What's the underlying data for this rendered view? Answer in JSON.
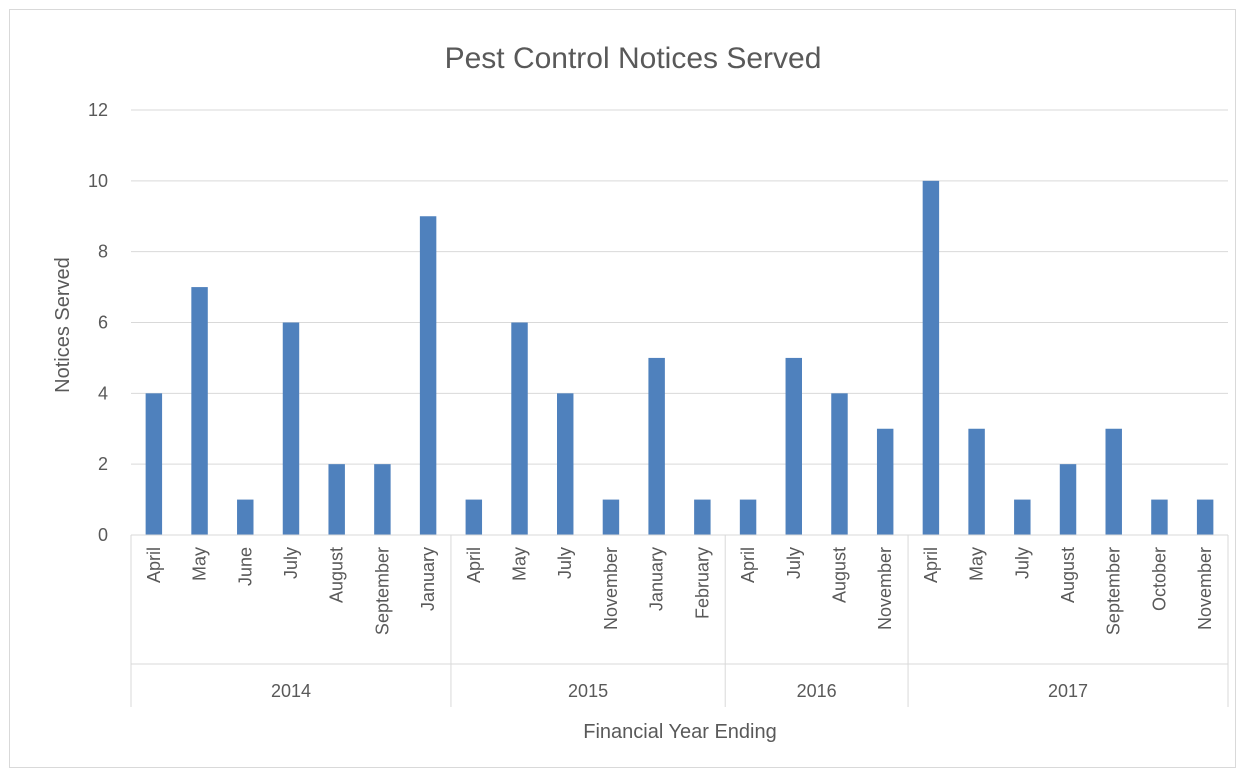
{
  "chart_data": {
    "type": "bar",
    "title": "Pest Control Notices Served",
    "xlabel": "Financial Year Ending",
    "ylabel": "Notices Served",
    "ylim": [
      0,
      12
    ],
    "yticks": [
      0,
      2,
      4,
      6,
      8,
      10,
      12
    ],
    "grid": true,
    "legend": "none",
    "colors": {
      "bar": "#4f81bd",
      "grid": "#d9d9d9",
      "text": "#595959"
    },
    "groups": [
      {
        "label": "2014",
        "categories": [
          "April",
          "May",
          "June",
          "July",
          "August",
          "September",
          "January"
        ],
        "values": [
          4,
          7,
          1,
          6,
          2,
          2,
          9
        ]
      },
      {
        "label": "2015",
        "categories": [
          "April",
          "May",
          "July",
          "November",
          "January",
          "February"
        ],
        "values": [
          1,
          6,
          4,
          1,
          5,
          1
        ]
      },
      {
        "label": "2016",
        "categories": [
          "April",
          "July",
          "August",
          "November"
        ],
        "values": [
          1,
          5,
          4,
          3
        ]
      },
      {
        "label": "2017",
        "categories": [
          "April",
          "May",
          "July",
          "August",
          "September",
          "October",
          "November"
        ],
        "values": [
          10,
          3,
          1,
          2,
          3,
          1,
          1
        ]
      }
    ]
  }
}
